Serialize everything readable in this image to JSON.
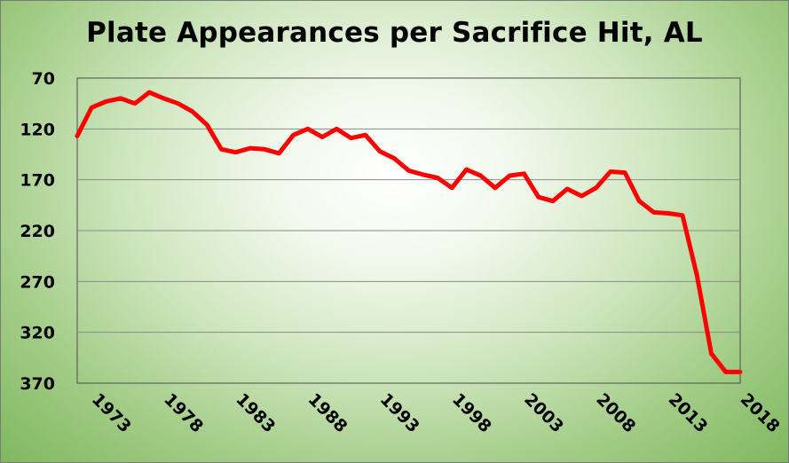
{
  "chart_data": {
    "type": "line",
    "title": "Plate Appearances per Sacrifice Hit, AL",
    "xlabel": "",
    "ylabel": "",
    "ylim": [
      70,
      370
    ],
    "y_inverted": true,
    "xlim": [
      1972,
      2018
    ],
    "y_ticks": [
      "70",
      "120",
      "170",
      "220",
      "270",
      "320",
      "370"
    ],
    "x_ticks": [
      "1973",
      "1978",
      "1983",
      "1988",
      "1993",
      "1998",
      "2003",
      "2008",
      "2013",
      "2018"
    ],
    "grid": true,
    "legend": "none",
    "series": [
      {
        "color": "#ff0000",
        "x": [
          1972,
          1973,
          1974,
          1975,
          1976,
          1977,
          1978,
          1979,
          1980,
          1981,
          1982,
          1983,
          1984,
          1985,
          1986,
          1987,
          1988,
          1989,
          1990,
          1991,
          1992,
          1993,
          1994,
          1995,
          1996,
          1997,
          1998,
          1999,
          2000,
          2001,
          2002,
          2003,
          2004,
          2005,
          2006,
          2007,
          2008,
          2009,
          2010,
          2011,
          2012,
          2013,
          2014,
          2015,
          2016,
          2017,
          2018
        ],
        "values": [
          127,
          99,
          93,
          90,
          95,
          84,
          90,
          95,
          103,
          116,
          140,
          143,
          139,
          140,
          144,
          126,
          120,
          128,
          120,
          129,
          126,
          142,
          149,
          161,
          165,
          168,
          178,
          160,
          166,
          178,
          166,
          164,
          187,
          191,
          179,
          186,
          178,
          162,
          163,
          191,
          202,
          203,
          205,
          264,
          341,
          359,
          359
        ]
      }
    ]
  }
}
